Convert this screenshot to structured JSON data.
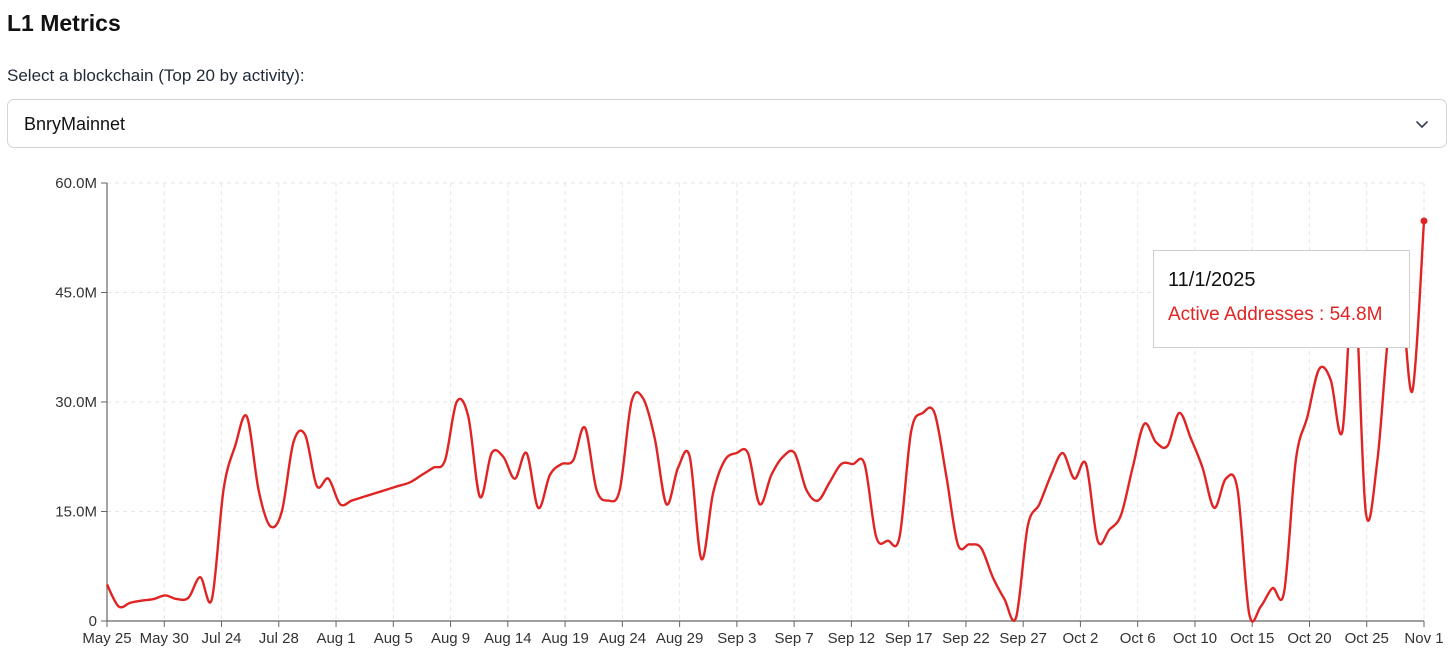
{
  "header": {
    "title": "L1 Metrics"
  },
  "selector": {
    "label": "Select a blockchain (Top 20 by activity):",
    "value": "BnryMainnet",
    "icon": "chevron-down-icon"
  },
  "tooltip": {
    "date": "11/1/2025",
    "series_label": "Active Addresses",
    "separator": " : ",
    "value": "54.8M"
  },
  "colors": {
    "line": "#e02424",
    "tooltip_text": "#e02424",
    "grid": "#e5e5e5"
  },
  "chart_data": {
    "type": "line",
    "title": "",
    "xlabel": "",
    "ylabel": "",
    "ylim": [
      0,
      60
    ],
    "y_unit": "M",
    "yticks": [
      "0",
      "15.0M",
      "30.0M",
      "45.0M",
      "60.0M"
    ],
    "ytick_values": [
      0,
      15,
      30,
      45,
      60
    ],
    "xticks": [
      "May 25",
      "May 30",
      "Jul 24",
      "Jul 28",
      "Aug 1",
      "Aug 5",
      "Aug 9",
      "Aug 14",
      "Aug 19",
      "Aug 24",
      "Aug 29",
      "Sep 3",
      "Sep 7",
      "Sep 12",
      "Sep 17",
      "Sep 22",
      "Sep 27",
      "Oct 2",
      "Oct 6",
      "Oct 10",
      "Oct 15",
      "Oct 20",
      "Oct 25",
      "Nov 1"
    ],
    "grid": true,
    "series": [
      {
        "name": "Active Addresses",
        "values": [
          5.0,
          2.0,
          2.5,
          2.8,
          3.0,
          3.5,
          3.0,
          3.2,
          6.0,
          3.0,
          18.0,
          24.0,
          28.0,
          18.0,
          13.0,
          15.0,
          24.5,
          25.5,
          18.5,
          19.5,
          16.0,
          16.5,
          17.0,
          17.5,
          18.0,
          18.5,
          19.0,
          20.0,
          21.0,
          22.0,
          30.0,
          28.0,
          17.0,
          23.0,
          22.5,
          19.5,
          23.0,
          15.5,
          20.0,
          21.5,
          22.0,
          26.5,
          18.0,
          16.5,
          18.0,
          30.0,
          30.5,
          25.0,
          16.0,
          21.0,
          22.5,
          8.5,
          17.5,
          22.0,
          23.0,
          23.0,
          16.0,
          20.0,
          22.5,
          23.0,
          18.0,
          16.5,
          19.0,
          21.5,
          21.5,
          21.5,
          11.5,
          11.0,
          11.5,
          26.0,
          28.5,
          28.5,
          20.0,
          10.5,
          10.5,
          10.0,
          6.0,
          3.0,
          0.5,
          13.0,
          16.0,
          20.0,
          23.0,
          19.5,
          21.5,
          11.0,
          12.5,
          14.5,
          21.0,
          27.0,
          24.5,
          24.0,
          28.5,
          25.0,
          21.0,
          15.5,
          19.5,
          18.0,
          1.0,
          2.0,
          4.5,
          4.0,
          22.0,
          28.0,
          34.5,
          33.0,
          26.0,
          47.0,
          15.0,
          22.0,
          40.0,
          45.0,
          31.5,
          54.8
        ]
      }
    ],
    "highlight": {
      "label": "11/1/2025",
      "value": 54.8
    }
  }
}
